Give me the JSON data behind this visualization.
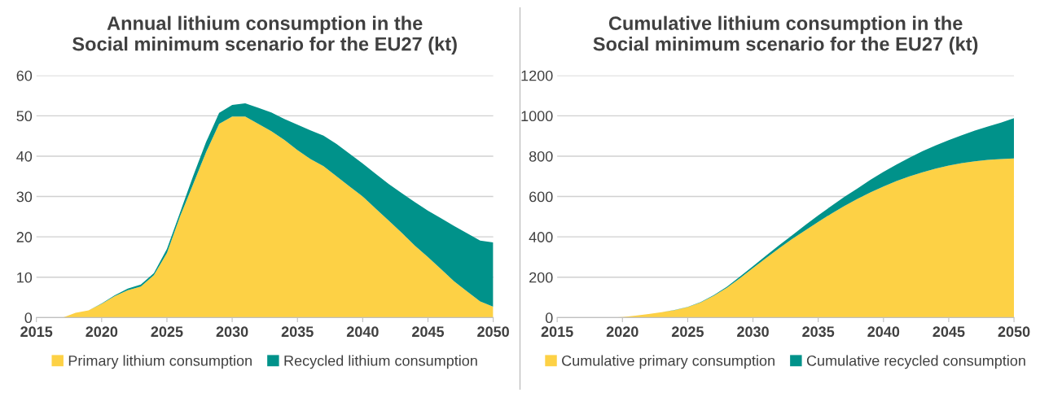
{
  "chart_data": [
    {
      "type": "area",
      "stacked": true,
      "title": "Annual lithium consumption in the\nSocial minimum scenario for the EU27 (kt)",
      "x": [
        2017,
        2018,
        2019,
        2020,
        2021,
        2022,
        2023,
        2024,
        2025,
        2026,
        2027,
        2028,
        2029,
        2030,
        2031,
        2032,
        2033,
        2034,
        2035,
        2036,
        2037,
        2038,
        2039,
        2040,
        2041,
        2042,
        2043,
        2044,
        2045,
        2046,
        2047,
        2048,
        2049,
        2050
      ],
      "series": [
        {
          "name": "Primary lithium consumption",
          "color": "#fdd145",
          "values": [
            0,
            1.2,
            1.8,
            3.4,
            5.3,
            6.8,
            7.7,
            10.5,
            16,
            25,
            33,
            41,
            48,
            49.8,
            49.8,
            48,
            46.2,
            44,
            41.5,
            39.3,
            37.5,
            35,
            32.5,
            30,
            27,
            24,
            21,
            17.8,
            15,
            12,
            9,
            6.5,
            4,
            2.7
          ]
        },
        {
          "name": "Recycled lithium consumption",
          "color": "#00928a",
          "values": [
            0,
            0,
            0,
            0.1,
            0.2,
            0.4,
            0.5,
            0.5,
            1,
            1,
            2,
            2.5,
            2.7,
            2.9,
            3.3,
            4,
            4.6,
            5.2,
            6.3,
            7.1,
            7.6,
            8,
            8.1,
            8.2,
            8.6,
            9.1,
            9.8,
            10.8,
            11.5,
            12.6,
            13.7,
            14.4,
            15.1,
            15.9
          ]
        }
      ],
      "xlim": [
        2015,
        2050
      ],
      "xticks": [
        2015,
        2020,
        2025,
        2030,
        2035,
        2040,
        2045,
        2050
      ],
      "ylim": [
        0,
        60
      ],
      "yticks": [
        0,
        10,
        20,
        30,
        40,
        50,
        60
      ],
      "grid": "y",
      "legend": "bottom"
    },
    {
      "type": "area",
      "stacked": true,
      "title": "Cumulative lithium consumption in the\nSocial minimum scenario for the EU27 (kt)",
      "x": [
        2019,
        2020,
        2021,
        2022,
        2023,
        2024,
        2025,
        2026,
        2027,
        2028,
        2029,
        2030,
        2031,
        2032,
        2033,
        2034,
        2035,
        2036,
        2037,
        2038,
        2039,
        2040,
        2041,
        2042,
        2043,
        2044,
        2045,
        2046,
        2047,
        2048,
        2049,
        2050
      ],
      "series": [
        {
          "name": "Cumulative primary consumption",
          "color": "#fdd145",
          "values": [
            0,
            3,
            10,
            18,
            27,
            37,
            52,
            75,
            108,
            148,
            195,
            245,
            295,
            343,
            390,
            432,
            474,
            515,
            553,
            588,
            620,
            650,
            677,
            700,
            720,
            738,
            753,
            766,
            775,
            782,
            786,
            789
          ]
        },
        {
          "name": "Cumulative recycled consumption",
          "color": "#00928a",
          "values": [
            0,
            0,
            0,
            0,
            0,
            1,
            1,
            2,
            3,
            5,
            8,
            10,
            12,
            15,
            18,
            26,
            33,
            38,
            45,
            52,
            63,
            72,
            81,
            93,
            105,
            115,
            126,
            138,
            152,
            165,
            180,
            199
          ]
        }
      ],
      "xlim": [
        2015,
        2050
      ],
      "xticks": [
        2015,
        2020,
        2025,
        2030,
        2035,
        2040,
        2045,
        2050
      ],
      "ylim": [
        0,
        1200
      ],
      "yticks": [
        0,
        200,
        400,
        600,
        800,
        1000,
        1200
      ],
      "grid": "y",
      "legend": "bottom"
    }
  ]
}
